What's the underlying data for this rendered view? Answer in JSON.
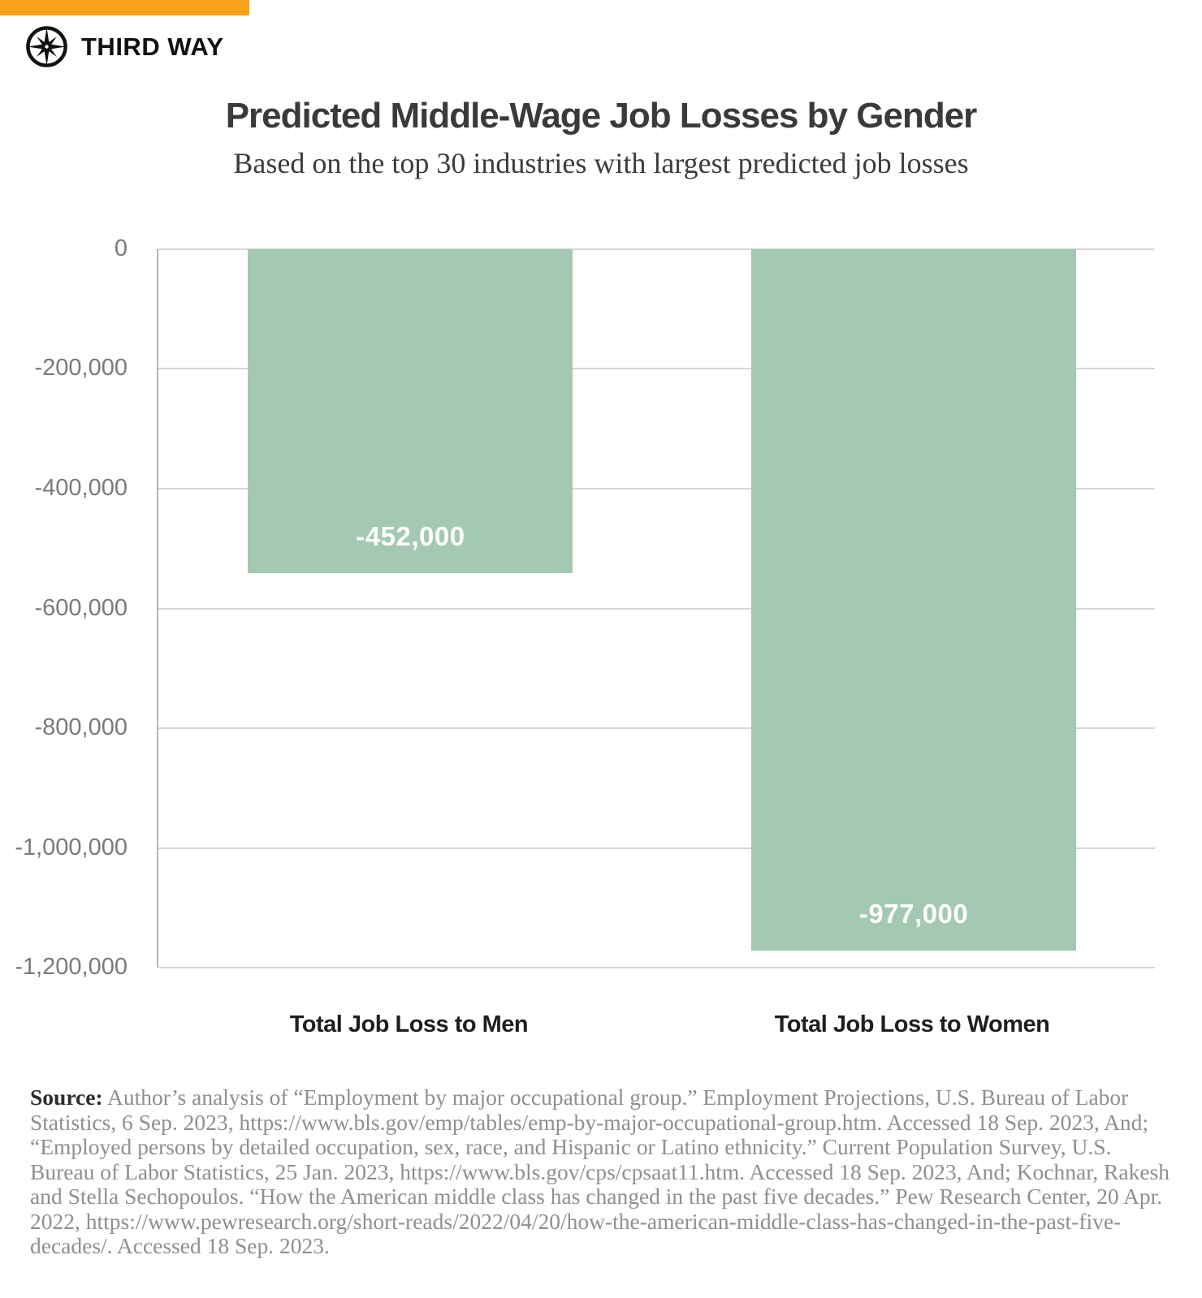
{
  "brand": {
    "logo_text": "THIRD WAY",
    "logo_icon": "compass-star-icon",
    "accent_orange": "#FAA21B"
  },
  "header": {
    "title": "Predicted Middle-Wage Job Losses by Gender",
    "subtitle": "Based on the top 30 industries with largest predicted job losses"
  },
  "chart_data": {
    "type": "bar",
    "orientation": "vertical",
    "title": "Predicted Middle-Wage Job Losses by Gender",
    "subtitle": "Based on the top 30 industries with largest predicted job losses",
    "categories": [
      "Total Job Loss to Men",
      "Total Job Loss to Women"
    ],
    "values": [
      -452000,
      -977000
    ],
    "value_labels": [
      "-452,000",
      "-977,000"
    ],
    "xlabel": "",
    "ylabel": "",
    "ylim": [
      -1200000,
      0
    ],
    "y_ticks": [
      0,
      -200000,
      -400000,
      -600000,
      -800000,
      -1000000,
      -1200000
    ],
    "y_tick_labels": [
      "0",
      "-200,000",
      "-400,000",
      "-600,000",
      "-800,000",
      "-1,000,000",
      "-1,200,000"
    ],
    "grid": true,
    "legend": "none",
    "bar_color": "#A3C9B2",
    "value_label_color": "#FFFFFF",
    "layout": {
      "bar_centers_pct": [
        25.3,
        75.8
      ],
      "bar_width_pct": 32.6,
      "drawn_depth_pct": [
        45.1,
        97.6
      ]
    }
  },
  "source": {
    "label": "Source:",
    "text": "Author’s analysis of “Employment by major occupational group.” Employment Projections, U.S. Bureau of Labor Statistics, 6 Sep. 2023, https://www.bls.gov/emp/tables/emp-by-major-occupational-group.htm. Accessed 18 Sep. 2023, And; “Employed persons by detailed occupation, sex, race, and Hispanic or Latino ethnicity.” Current Population Survey, U.S. Bureau of Labor Statistics, 25 Jan. 2023, https://www.bls.gov/cps/cpsaat11.htm. Accessed 18 Sep. 2023, And; Kochnar, Rakesh and Stella Sechopoulos. “How the American middle class has changed in the past five decades.” Pew Research Center, 20 Apr. 2022, https://www.pewresearch.org/short-reads/2022/04/20/how-the-american-middle-class-has-changed-in-the-past-five-decades/. Accessed 18 Sep. 2023."
  }
}
